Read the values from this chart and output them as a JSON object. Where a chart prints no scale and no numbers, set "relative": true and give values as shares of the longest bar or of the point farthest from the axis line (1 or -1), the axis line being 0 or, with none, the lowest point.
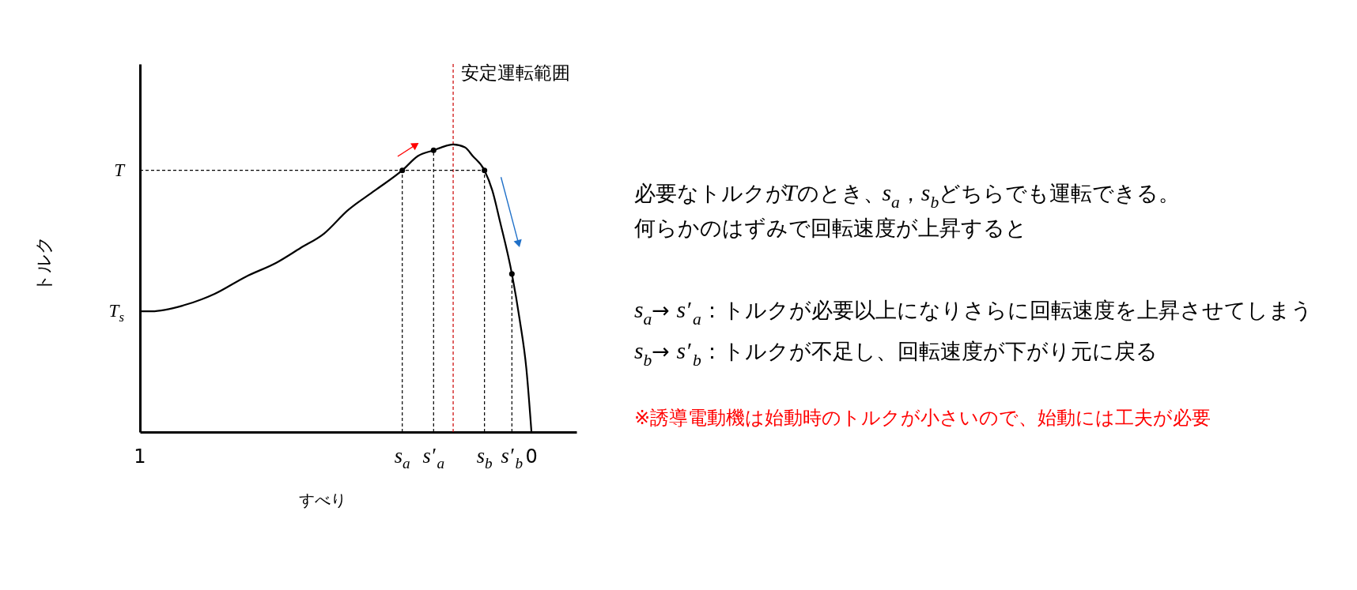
{
  "chart_data": {
    "type": "line",
    "xlabel": "すべり",
    "ylabel": "トルク",
    "relative": true,
    "xlim": [
      1,
      -0.115
    ],
    "xticks": [
      1,
      {
        "value": 0.33,
        "label": "s$_{a}$"
      },
      {
        "value": 0.25,
        "label": "s′$_{a}$"
      },
      {
        "value": 0.12,
        "label": "s$_{b}$"
      },
      {
        "value": 0.05,
        "label": "s′$_{b}$"
      },
      0
    ],
    "series": [
      {
        "color": "#000000",
        "x": [
          1,
          0.97,
          0.89,
          0.81,
          0.73,
          0.65,
          0.59,
          0.53,
          0.47,
          0.4,
          0.33,
          0.29,
          0.25,
          0.23,
          0.2,
          0.17,
          0.15,
          0.12,
          0.1,
          0.08,
          0.05,
          0.03,
          0.013,
          0
        ],
        "values": [
          0.42,
          0.42,
          0.44,
          0.48,
          0.54,
          0.59,
          0.64,
          0.69,
          0.77,
          0.84,
          0.91,
          0.96,
          0.98,
          0.99,
          1.0,
          0.99,
          0.96,
          0.91,
          0.84,
          0.73,
          0.55,
          0.39,
          0.22,
          0
        ]
      },
      {
        "type": "scatter",
        "color": "#000000",
        "marker": "circle",
        "x": [
          0.33,
          0.25,
          0.12,
          0.05
        ],
        "values": [
          0.91,
          0.98,
          0.91,
          0.55
        ]
      }
    ],
    "ref_lines": [
      {
        "axis": "x",
        "value": 0.2,
        "label": "安定運転範囲",
        "color": "#cc0000",
        "line_style": "dashed"
      },
      {
        "axis": "y",
        "value": 0.91,
        "label": "T",
        "color": "#000000",
        "line_style": "dashed"
      },
      {
        "axis": "x",
        "value": 0.33,
        "color": "#000000",
        "line_style": "dashed"
      },
      {
        "axis": "x",
        "value": 0.25,
        "color": "#000000",
        "line_style": "dashed"
      },
      {
        "axis": "x",
        "value": 0.12,
        "color": "#000000",
        "line_style": "dashed"
      },
      {
        "axis": "x",
        "value": 0.05,
        "color": "#000000",
        "line_style": "dashed"
      }
    ],
    "annotations": [
      {
        "text": "T$_{s}$",
        "x": 1,
        "y": 0.42
      },
      "必要なトルクがTのとき、s$_{a}$，s$_{b}$どちらでも運転できる。",
      "何らかのはずみで回転速度が上昇すると",
      "s$_{a}$→ s′$_{a}$：トルクが必要以上になりさらに回転速度を上昇させてしまう",
      "s$_{b}$→ s′$_{b}$：トルクが不足し、回転速度が下がり元に戻る",
      "※誘導電動機は始動時のトルクが小さいので、始動には工夫が必要"
    ]
  }
}
